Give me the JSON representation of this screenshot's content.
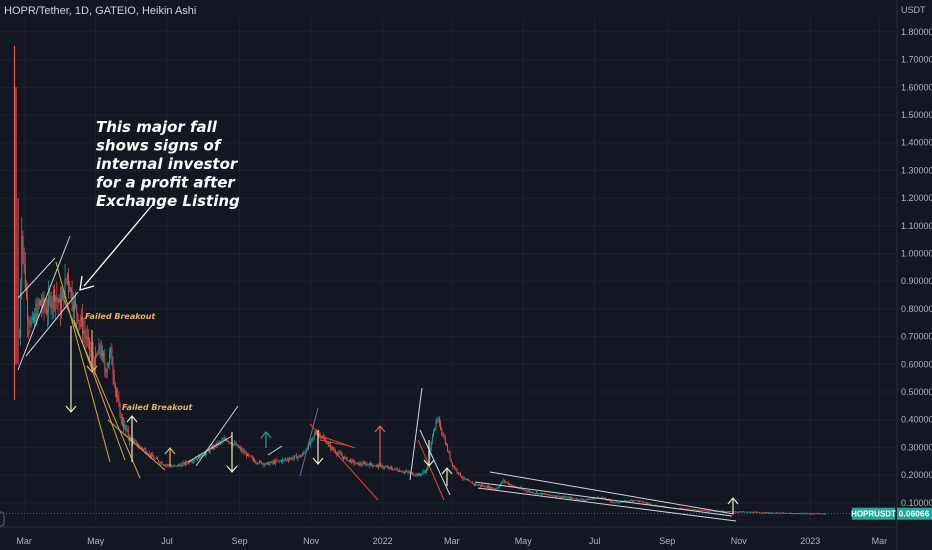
{
  "header": {
    "title": "HOPR/Tether, 1D, GATEIO, Heikin Ashi"
  },
  "currency": "USDT",
  "symbol_tag": "HOPRUSDT",
  "last_price": "0.06066",
  "colors": {
    "background": "#131722",
    "grid": "#1e222d",
    "up": "#26a69a",
    "down": "#ef5350",
    "tag": "#26a69a",
    "annotation_white": "#ffffff",
    "annotation_orange": "#e8b266",
    "red_line": "#d9443a",
    "yellow_line": "#d4a84b",
    "purple_line": "#7b5ea7"
  },
  "chart_data": {
    "type": "candlestick",
    "title": "HOPR/Tether, 1D, GATEIO, Heikin Ashi",
    "ylabel": "USDT",
    "ylim": [
      0.0,
      1.85
    ],
    "y_ticks": [
      "1.80000",
      "1.70000",
      "1.60000",
      "1.50000",
      "1.40000",
      "1.30000",
      "1.20000",
      "1.10000",
      "1.00000",
      "0.90000",
      "0.80000",
      "0.70000",
      "0.60000",
      "0.50000",
      "0.40000",
      "0.30000",
      "0.20000",
      "0.10000"
    ],
    "x_ticks": [
      "Mar",
      "May",
      "Jul",
      "Sep",
      "Nov",
      "2022",
      "Mar",
      "May",
      "Jul",
      "Sep",
      "Nov",
      "2023",
      "Mar"
    ],
    "grid": true,
    "price_path": [
      [
        "2021-02-25",
        0.7
      ],
      [
        "2021-02-27",
        1.1
      ],
      [
        "2021-03-01",
        0.95
      ],
      [
        "2021-03-04",
        0.78
      ],
      [
        "2021-03-08",
        0.74
      ],
      [
        "2021-03-14",
        0.82
      ],
      [
        "2021-03-20",
        0.8
      ],
      [
        "2021-03-27",
        0.86
      ],
      [
        "2021-04-01",
        0.8
      ],
      [
        "2021-04-07",
        0.93
      ],
      [
        "2021-04-12",
        0.82
      ],
      [
        "2021-04-18",
        0.76
      ],
      [
        "2021-04-24",
        0.68
      ],
      [
        "2021-04-30",
        0.6
      ],
      [
        "2021-05-05",
        0.66
      ],
      [
        "2021-05-09",
        0.58
      ],
      [
        "2021-05-14",
        0.64
      ],
      [
        "2021-05-19",
        0.48
      ],
      [
        "2021-05-23",
        0.4
      ],
      [
        "2021-05-29",
        0.34
      ],
      [
        "2021-06-05",
        0.31
      ],
      [
        "2021-06-12",
        0.29
      ],
      [
        "2021-06-20",
        0.26
      ],
      [
        "2021-06-28",
        0.24
      ],
      [
        "2021-07-06",
        0.23
      ],
      [
        "2021-07-15",
        0.24
      ],
      [
        "2021-07-25",
        0.26
      ],
      [
        "2021-08-03",
        0.28
      ],
      [
        "2021-08-12",
        0.31
      ],
      [
        "2021-08-20",
        0.33
      ],
      [
        "2021-08-28",
        0.31
      ],
      [
        "2021-09-05",
        0.28
      ],
      [
        "2021-09-14",
        0.25
      ],
      [
        "2021-09-24",
        0.24
      ],
      [
        "2021-10-04",
        0.25
      ],
      [
        "2021-10-14",
        0.26
      ],
      [
        "2021-10-24",
        0.27
      ],
      [
        "2021-11-01",
        0.32
      ],
      [
        "2021-11-05",
        0.36
      ],
      [
        "2021-11-12",
        0.33
      ],
      [
        "2021-11-20",
        0.29
      ],
      [
        "2021-11-30",
        0.26
      ],
      [
        "2021-12-10",
        0.24
      ],
      [
        "2021-12-20",
        0.24
      ],
      [
        "2022-01-01",
        0.23
      ],
      [
        "2022-01-12",
        0.22
      ],
      [
        "2022-01-22",
        0.21
      ],
      [
        "2022-02-01",
        0.2
      ],
      [
        "2022-02-08",
        0.22
      ],
      [
        "2022-02-13",
        0.36
      ],
      [
        "2022-02-17",
        0.4
      ],
      [
        "2022-02-22",
        0.34
      ],
      [
        "2022-03-01",
        0.24
      ],
      [
        "2022-03-10",
        0.19
      ],
      [
        "2022-03-18",
        0.17
      ],
      [
        "2022-03-28",
        0.16
      ],
      [
        "2022-04-08",
        0.15
      ],
      [
        "2022-04-14",
        0.18
      ],
      [
        "2022-04-22",
        0.16
      ],
      [
        "2022-05-06",
        0.14
      ],
      [
        "2022-05-20",
        0.13
      ],
      [
        "2022-06-06",
        0.12
      ],
      [
        "2022-06-22",
        0.11
      ],
      [
        "2022-07-06",
        0.12
      ],
      [
        "2022-07-18",
        0.1
      ],
      [
        "2022-08-04",
        0.11
      ],
      [
        "2022-08-22",
        0.09
      ],
      [
        "2022-09-08",
        0.08
      ],
      [
        "2022-09-26",
        0.075
      ],
      [
        "2022-10-12",
        0.07
      ],
      [
        "2022-10-28",
        0.068
      ],
      [
        "2022-11-12",
        0.066
      ],
      [
        "2022-11-28",
        0.064
      ],
      [
        "2022-12-15",
        0.062
      ],
      [
        "2023-01-02",
        0.061
      ],
      [
        "2023-01-15",
        0.06066
      ]
    ],
    "last_value": 0.06066,
    "annotations": [
      "This major fall",
      "shows signs of",
      "internal investor",
      "for a profit after",
      "Exchange Listing"
    ],
    "small_labels": [
      "Failed Breakout",
      "Failed Breakout"
    ]
  }
}
